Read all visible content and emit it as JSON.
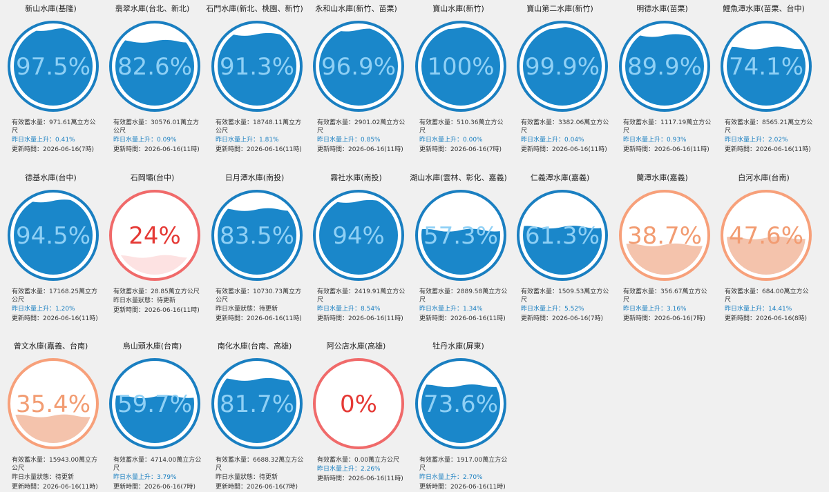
{
  "colors": {
    "blue": "#1a87ca",
    "blue_ring": "#1a7fc1",
    "blue_text_light": "#8fd0f5",
    "blue_text_dark": "#1a87ca",
    "red": "#f06a6a",
    "red_fill": "#fde2e2",
    "red_text": "#e53935",
    "orange": "#f7a07a",
    "orange_fill": "#f4c3ac",
    "orange_text": "#f29c72"
  },
  "labels": {
    "storage_prefix": "有效蓄水量：",
    "storage_unit": "萬立方公尺",
    "rise_prefix": "昨日水量上升：",
    "status_prefix": "昨日水量狀態：",
    "update_prefix": "更新時間："
  },
  "reservoirs": [
    {
      "name": "新山水庫(基隆)",
      "percent": "97.5%",
      "level": 0.975,
      "theme": "blue",
      "storage": "971.61萬立方公尺",
      "change_type": "rise",
      "change": "0.41%",
      "updated": "2026-06-16(7時)"
    },
    {
      "name": "翡翠水庫(台北、新北)",
      "percent": "82.6%",
      "level": 0.826,
      "theme": "blue",
      "storage": "30576.01萬立方公尺",
      "change_type": "rise",
      "change": "0.09%",
      "updated": "2026-06-16(11時)"
    },
    {
      "name": "石門水庫(新北、桃園、新竹)",
      "percent": "91.3%",
      "level": 0.913,
      "theme": "blue",
      "storage": "18748.11萬立方公尺",
      "change_type": "rise",
      "change": "1.81%",
      "updated": "2026-06-16(11時)"
    },
    {
      "name": "永和山水庫(新竹、苗栗)",
      "percent": "96.9%",
      "level": 0.969,
      "theme": "blue",
      "storage": "2901.02萬立方公尺",
      "change_type": "rise",
      "change": "0.85%",
      "updated": "2026-06-16(11時)"
    },
    {
      "name": "寶山水庫(新竹)",
      "percent": "100%",
      "level": 1.0,
      "theme": "blue",
      "storage": "510.36萬立方公尺",
      "change_type": "rise",
      "change": "0.00%",
      "updated": "2026-06-16(7時)"
    },
    {
      "name": "寶山第二水庫(新竹)",
      "percent": "99.9%",
      "level": 0.999,
      "theme": "blue",
      "storage": "3382.06萬立方公尺",
      "change_type": "rise",
      "change": "0.04%",
      "updated": "2026-06-16(11時)"
    },
    {
      "name": "明德水庫(苗栗)",
      "percent": "89.9%",
      "level": 0.899,
      "theme": "blue",
      "storage": "1117.19萬立方公尺",
      "change_type": "rise",
      "change": "0.93%",
      "updated": "2026-06-16(11時)"
    },
    {
      "name": "鯉魚潭水庫(苗栗、台中)",
      "percent": "74.1%",
      "level": 0.741,
      "theme": "blue",
      "storage": "8565.21萬立方公尺",
      "change_type": "rise",
      "change": "2.02%",
      "updated": "2026-06-16(11時)"
    },
    {
      "name": "德基水庫(台中)",
      "percent": "94.5%",
      "level": 0.945,
      "theme": "blue",
      "storage": "17168.25萬立方公尺",
      "change_type": "rise",
      "change": "1.20%",
      "updated": "2026-06-16(11時)"
    },
    {
      "name": "石岡壩(台中)",
      "percent": "24%",
      "level": 0.24,
      "theme": "red",
      "storage": "28.85萬立方公尺",
      "change_type": "status",
      "change": "待更新",
      "updated": "2026-06-16(11時)"
    },
    {
      "name": "日月潭水庫(南投)",
      "percent": "83.5%",
      "level": 0.835,
      "theme": "blue",
      "storage": "10730.73萬立方公尺",
      "change_type": "status",
      "change": "待更新",
      "updated": "2026-06-16(11時)"
    },
    {
      "name": "霧社水庫(南投)",
      "percent": "94%",
      "level": 0.94,
      "theme": "blue",
      "storage": "2419.91萬立方公尺",
      "change_type": "rise",
      "change": "8.54%",
      "updated": "2026-06-16(11時)"
    },
    {
      "name": "湖山水庫(雲林、彰化、嘉義)",
      "percent": "57.3%",
      "level": 0.573,
      "theme": "blue",
      "storage": "2889.58萬立方公尺",
      "change_type": "rise",
      "change": "1.34%",
      "updated": "2026-06-16(11時)"
    },
    {
      "name": "仁義潭水庫(嘉義)",
      "percent": "61.3%",
      "level": 0.613,
      "theme": "blue",
      "storage": "1509.53萬立方公尺",
      "change_type": "rise",
      "change": "5.52%",
      "updated": "2026-06-16(7時)"
    },
    {
      "name": "蘭潭水庫(嘉義)",
      "percent": "38.7%",
      "level": 0.387,
      "theme": "orange",
      "storage": "356.67萬立方公尺",
      "change_type": "rise",
      "change": "3.16%",
      "updated": "2026-06-16(7時)"
    },
    {
      "name": "白河水庫(台南)",
      "percent": "47.6%",
      "level": 0.476,
      "theme": "orange",
      "storage": "684.00萬立方公尺",
      "change_type": "rise",
      "change": "14.41%",
      "updated": "2026-06-16(8時)"
    },
    {
      "name": "曾文水庫(嘉義、台南)",
      "percent": "35.4%",
      "level": 0.354,
      "theme": "orange",
      "storage": "15943.00萬立方公尺",
      "change_type": "status",
      "change": "待更新",
      "updated": "2026-06-16(11時)"
    },
    {
      "name": "烏山頭水庫(台南)",
      "percent": "59.7%",
      "level": 0.597,
      "theme": "blue",
      "storage": "4714.00萬立方公尺",
      "change_type": "rise",
      "change": "3.79%",
      "updated": "2026-06-16(7時)"
    },
    {
      "name": "南化水庫(台南、高雄)",
      "percent": "81.7%",
      "level": 0.817,
      "theme": "blue",
      "storage": "6688.32萬立方公尺",
      "change_type": "status",
      "change": "待更新",
      "updated": "2026-06-16(7時)"
    },
    {
      "name": "阿公店水庫(高雄)",
      "percent": "0%",
      "level": 0.0,
      "theme": "red",
      "storage": "0.00萬立方公尺",
      "change_type": "rise",
      "change": "2.26%",
      "updated": "2026-06-16(11時)"
    },
    {
      "name": "牡丹水庫(屏東)",
      "percent": "73.6%",
      "level": 0.736,
      "theme": "blue",
      "storage": "1917.00萬立方公尺",
      "change_type": "rise",
      "change": "2.70%",
      "updated": "2026-06-16(11時)"
    }
  ]
}
